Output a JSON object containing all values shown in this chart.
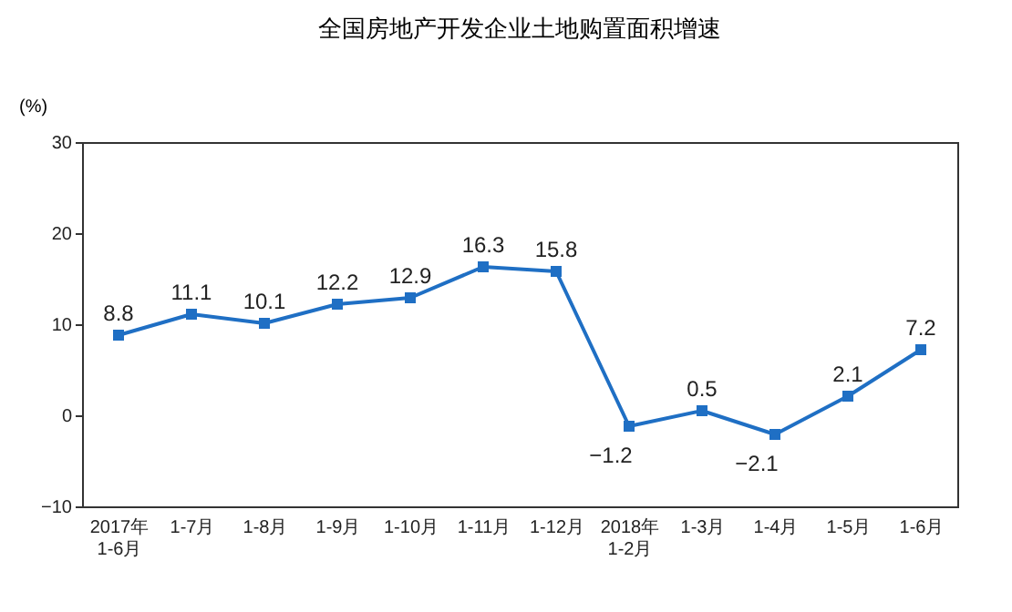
{
  "chart_data": {
    "type": "line",
    "title": "全国房地产开发企业土地购置面积增速",
    "ylabel": "(%)",
    "categories": [
      "2017年\n1-6月",
      "1-7月",
      "1-8月",
      "1-9月",
      "1-10月",
      "1-11月",
      "1-12月",
      "2018年\n1-2月",
      "1-3月",
      "1-4月",
      "1-5月",
      "1-6月"
    ],
    "series": [
      {
        "color": "#1f6fc4",
        "values": [
          8.8,
          11.1,
          10.1,
          12.2,
          12.9,
          16.3,
          15.8,
          -1.2,
          0.5,
          -2.1,
          2.1,
          7.2
        ]
      }
    ],
    "ylim": [
      -10,
      30
    ],
    "yticks": [
      -10,
      0,
      10,
      20,
      30
    ],
    "grid": false,
    "marker": "square",
    "line_style": "solid",
    "data_labels": true
  }
}
